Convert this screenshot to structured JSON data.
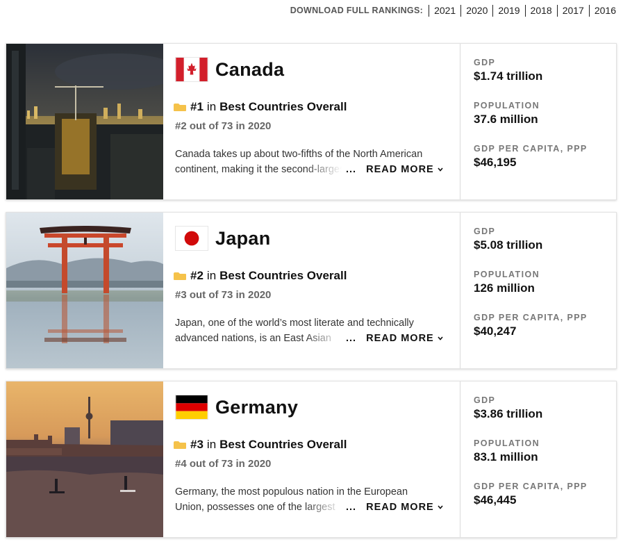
{
  "downloads": {
    "label": "DOWNLOAD FULL RANKINGS:",
    "years": [
      "2021",
      "2020",
      "2019",
      "2018",
      "2017",
      "2016"
    ]
  },
  "colors": {
    "accent_gold": "#f5c24a",
    "text_dark": "#111111",
    "label_gray": "#777777"
  },
  "countries": [
    {
      "name": "Canada",
      "flag_icon": "canada-flag-icon",
      "photo_desc": "city-skyline-construction-photo",
      "rank": "#1",
      "rank_in": "in",
      "category": "Best Countries Overall",
      "prev_rank": "#2 out of 73 in 2020",
      "desc_line1": "Canada takes up about two-fifths of the North American",
      "desc_line2": "continent, making it the second-largest",
      "ellipsis": "...",
      "read_more": "READ MORE",
      "stats": [
        {
          "label": "GDP",
          "value": "$1.74 trillion"
        },
        {
          "label": "POPULATION",
          "value": "37.6 million"
        },
        {
          "label": "GDP PER CAPITA, PPP",
          "value": "$46,195"
        }
      ]
    },
    {
      "name": "Japan",
      "flag_icon": "japan-flag-icon",
      "photo_desc": "torii-gate-reflection-photo",
      "rank": "#2",
      "rank_in": "in",
      "category": "Best Countries Overall",
      "prev_rank": "#3 out of 73 in 2020",
      "desc_line1": "Japan, one of the world’s most literate and technically",
      "desc_line2": "advanced nations, is an East Asian",
      "ellipsis": "...",
      "read_more": "READ MORE",
      "stats": [
        {
          "label": "GDP",
          "value": "$5.08 trillion"
        },
        {
          "label": "POPULATION",
          "value": "126 million"
        },
        {
          "label": "GDP PER CAPITA, PPP",
          "value": "$40,247"
        }
      ]
    },
    {
      "name": "Germany",
      "flag_icon": "germany-flag-icon",
      "photo_desc": "berlin-river-sunset-photo",
      "rank": "#3",
      "rank_in": "in",
      "category": "Best Countries Overall",
      "prev_rank": "#4 out of 73 in 2020",
      "desc_line1": "Germany, the most populous nation in the European",
      "desc_line2": "Union, possesses one of the largest",
      "ellipsis": "...",
      "read_more": "READ MORE",
      "stats": [
        {
          "label": "GDP",
          "value": "$3.86 trillion"
        },
        {
          "label": "POPULATION",
          "value": "83.1 million"
        },
        {
          "label": "GDP PER CAPITA, PPP",
          "value": "$46,445"
        }
      ]
    }
  ]
}
